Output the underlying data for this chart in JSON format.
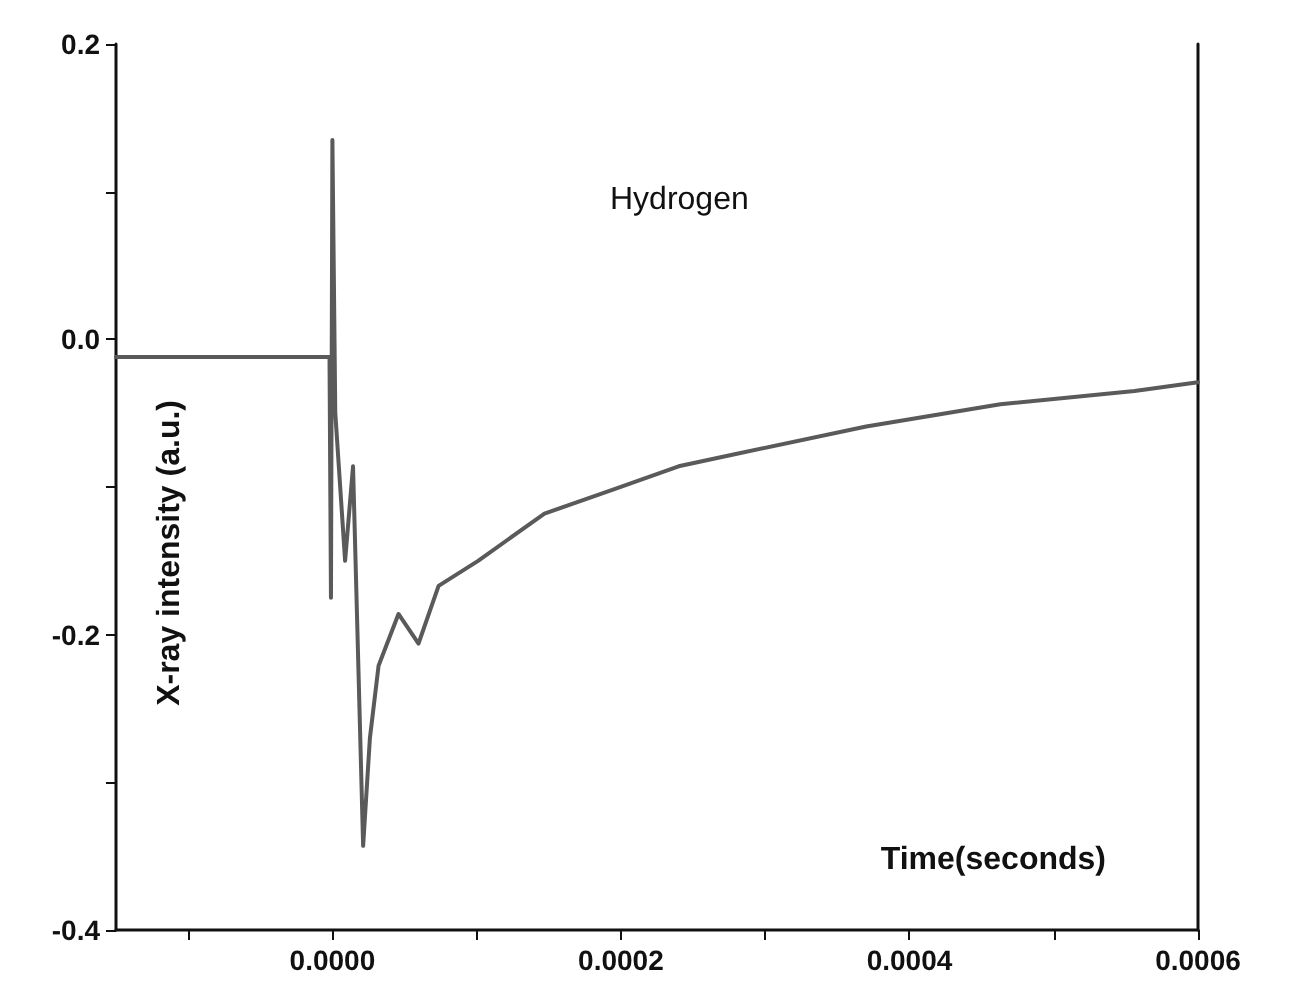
{
  "chart_data": {
    "type": "line",
    "xlabel": "Time(seconds)",
    "ylabel": "X-ray intensity (a.u.)",
    "annotations": [
      "Hydrogen"
    ],
    "xlim": [
      -0.00015,
      0.0006
    ],
    "ylim": [
      -0.4,
      0.2
    ],
    "xticks": [
      {
        "value": -0.0001,
        "label": null
      },
      {
        "value": 0,
        "label": "0.0000"
      },
      {
        "value": 0.0001,
        "label": null
      },
      {
        "value": 0.0002,
        "label": "0.0002"
      },
      {
        "value": 0.0003,
        "label": null
      },
      {
        "value": 0.0004,
        "label": "0.0004"
      },
      {
        "value": 0.0005,
        "label": null
      },
      {
        "value": 0.0006,
        "label": "0.0006"
      }
    ],
    "yticks": [
      {
        "value": -0.4,
        "label": "-0.4"
      },
      {
        "value": -0.3,
        "label": null
      },
      {
        "value": -0.2,
        "label": "-0.2"
      },
      {
        "value": -0.1,
        "label": null
      },
      {
        "value": 0,
        "label": "0.0"
      },
      {
        "value": 0.1,
        "label": null
      },
      {
        "value": 0.2,
        "label": "0.2"
      }
    ],
    "grid": false,
    "marker": "none",
    "line_style": "solid",
    "series": [
      {
        "color": "#5a5a5a",
        "x": [
          -0.00015,
          -0.0001,
          -5e-05,
          -2e-06,
          -1e-06,
          0,
          2e-06,
          8.8e-06,
          1.43e-05,
          2.13e-05,
          2.6e-05,
          3.2e-05,
          4.58e-05,
          5.97e-05,
          7.36e-05,
          0.000101,
          0.000147,
          0.000194,
          0.00024,
          0.000278,
          0.00037,
          0.000463,
          0.000556,
          0.0006
        ],
        "values": [
          -0.012,
          -0.012,
          -0.012,
          -0.012,
          -0.175,
          0.135,
          -0.05,
          -0.15,
          -0.086,
          -0.343,
          -0.27,
          -0.221,
          -0.186,
          -0.206,
          -0.167,
          -0.15,
          -0.118,
          -0.102,
          -0.086,
          -0.078,
          -0.059,
          -0.044,
          -0.035,
          -0.029
        ]
      }
    ]
  }
}
